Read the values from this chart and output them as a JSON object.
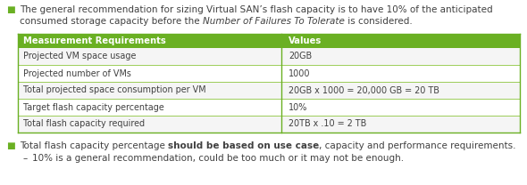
{
  "header_bg": "#6ab023",
  "header_text_color": "#ffffff",
  "row_border_color": "#8dc63f",
  "table_border_color": "#6ab023",
  "col1_header": "Measurement Requirements",
  "col2_header": "Values",
  "rows": [
    [
      "Projected VM space usage",
      "20GB"
    ],
    [
      "Projected number of VMs",
      "1000"
    ],
    [
      "Total projected space consumption per VM",
      "20GB x 1000 = 20,000 GB = 20 TB"
    ],
    [
      "Target flash capacity percentage",
      "10%"
    ],
    [
      "Total flash capacity required",
      "20TB x .10 = 2 TB"
    ]
  ],
  "text_color": "#404040",
  "bg_color": "#ffffff",
  "green_color": "#6ab023",
  "font_size": 7.5,
  "font_size_table": 7.2
}
